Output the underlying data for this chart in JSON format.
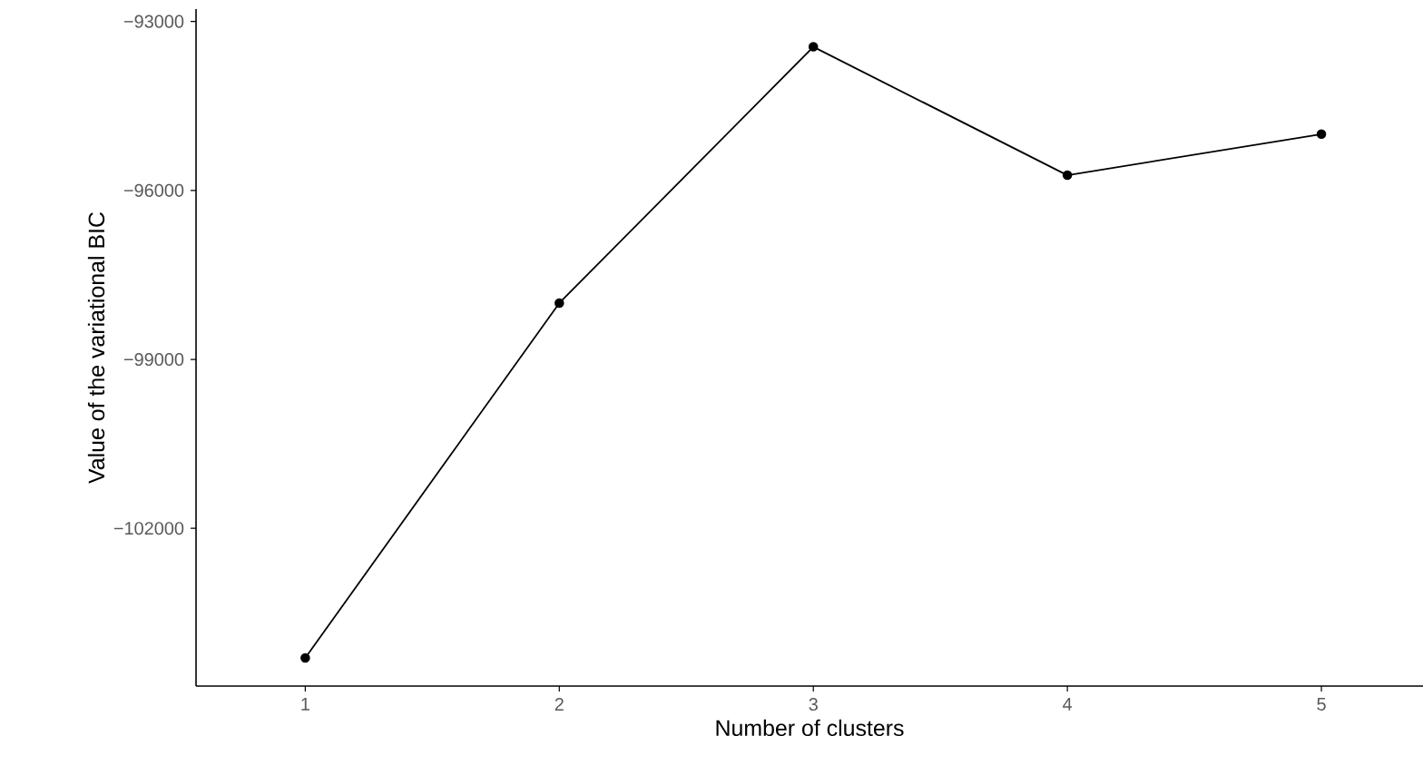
{
  "chart_data": {
    "type": "line",
    "xlabel": "Number of clusters",
    "ylabel": "Value of the variational BIC",
    "x": [
      1,
      2,
      3,
      4,
      5
    ],
    "series": [
      {
        "color": "#000000",
        "values": [
          -104300,
          -98000,
          -93450,
          -95730,
          -95000
        ]
      }
    ],
    "xlim": [
      0.57,
      5.4
    ],
    "ylim": [
      -104800,
      -92780
    ],
    "xticks": [
      1,
      2,
      3,
      4,
      5
    ],
    "yticks": [
      {
        "value": -102000,
        "label": "−102000"
      },
      {
        "value": -99000,
        "label": "−99000"
      },
      {
        "value": -96000,
        "label": "−96000"
      },
      {
        "value": -93000,
        "label": "−93000"
      }
    ],
    "grid": false,
    "marker": "circle",
    "line_style": "solid"
  }
}
